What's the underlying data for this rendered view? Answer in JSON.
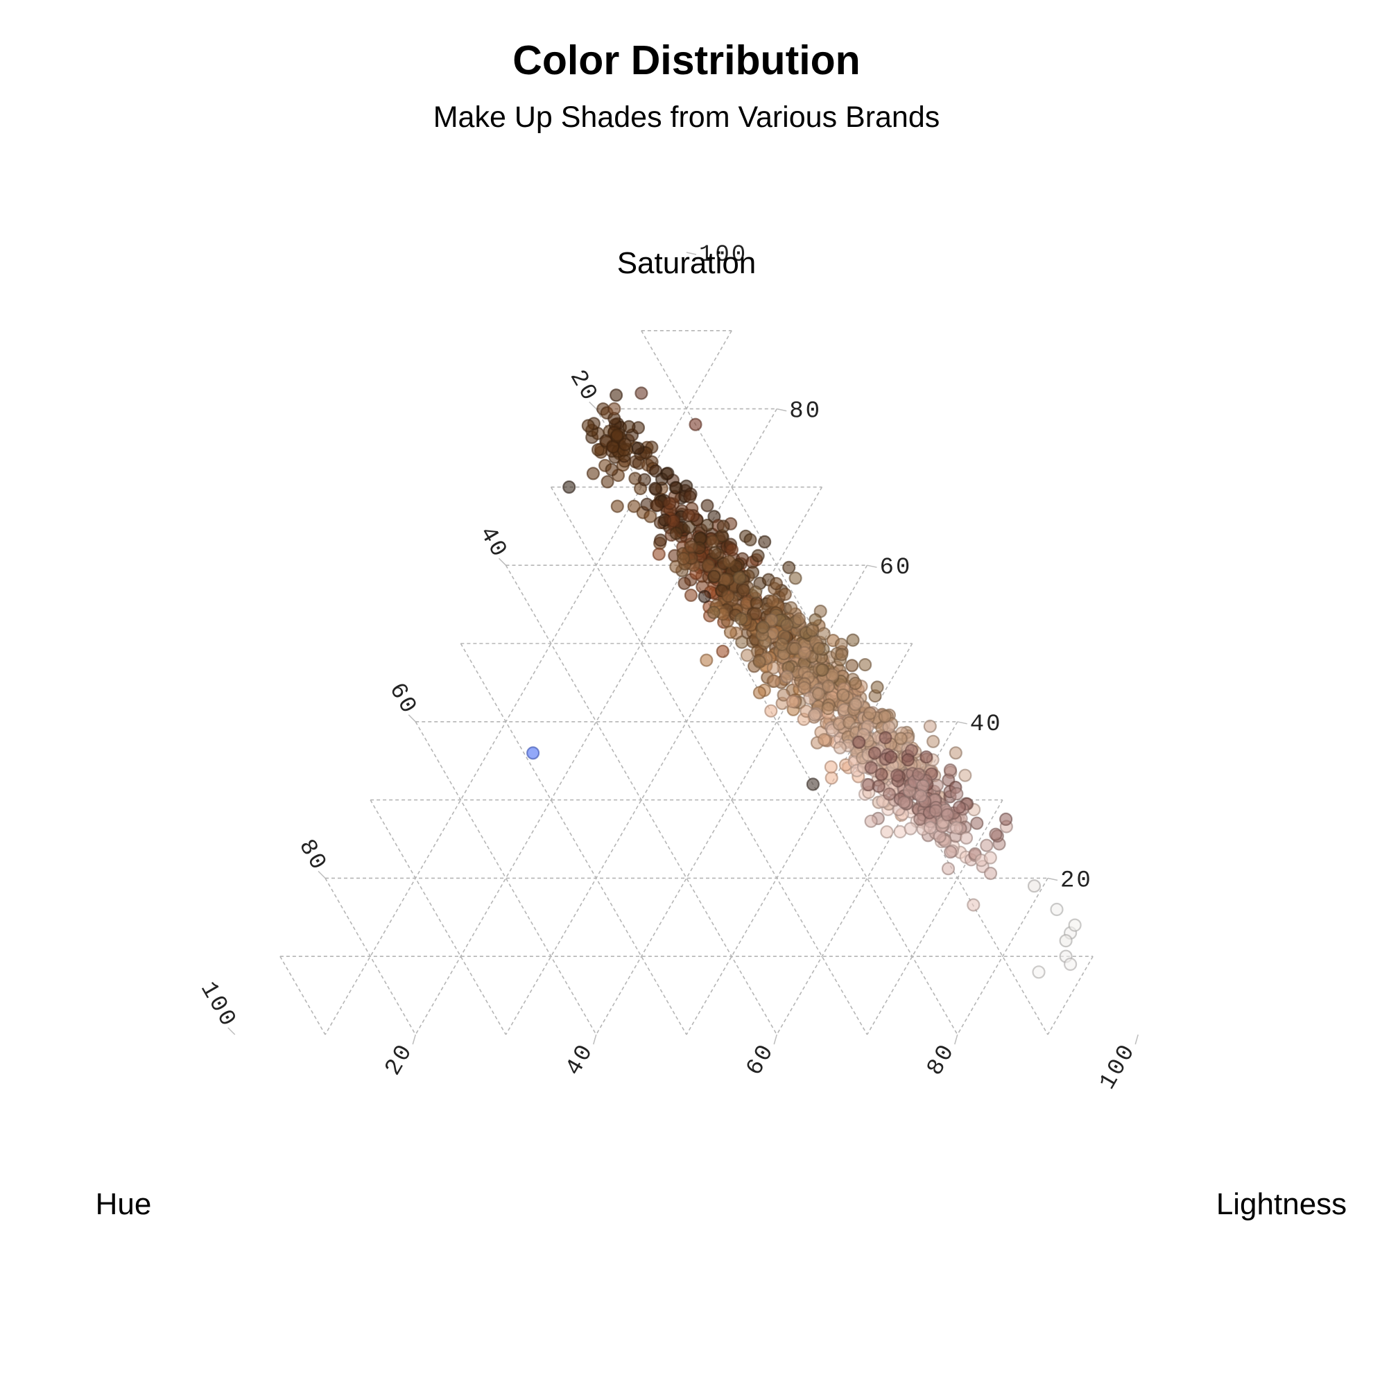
{
  "chart_data": {
    "type": "scatter",
    "subtype": "ternary",
    "title": "Color Distribution",
    "subtitle": "Make Up Shades from Various Brands",
    "axes": {
      "top": "Saturation",
      "left": "Hue",
      "right": "Lightness"
    },
    "ticks": [
      20,
      40,
      60,
      80,
      100
    ],
    "range": [
      0,
      100
    ],
    "grid": true,
    "grid_style": "dashed",
    "point_opacity": 0.6,
    "clusters": [
      {
        "saturation": 75,
        "hue": 20,
        "lightness": 5,
        "sd_along": 5,
        "sd_across": 2,
        "count": 90,
        "color_from": "#4a2a12",
        "color_to": "#7a4a22"
      },
      {
        "saturation": 62,
        "hue": 17,
        "lightness": 21,
        "sd_along": 6,
        "sd_across": 2.2,
        "count": 160,
        "color_from": "#3f2714",
        "color_to": "#a0502a"
      },
      {
        "saturation": 52,
        "hue": 15,
        "lightness": 33,
        "sd_along": 6,
        "sd_across": 2.6,
        "count": 220,
        "color_from": "#5a3a1e",
        "color_to": "#c08552"
      },
      {
        "saturation": 44,
        "hue": 12,
        "lightness": 44,
        "sd_along": 6,
        "sd_across": 2.8,
        "count": 240,
        "color_from": "#8a6a45",
        "color_to": "#f0b99a"
      },
      {
        "saturation": 35,
        "hue": 10,
        "lightness": 55,
        "sd_along": 5,
        "sd_across": 2.8,
        "count": 220,
        "color_from": "#b89070",
        "color_to": "#f2d2c8"
      },
      {
        "saturation": 29,
        "hue": 8,
        "lightness": 63,
        "sd_along": 4,
        "sd_across": 2.4,
        "count": 130,
        "color_from": "#8a5a55",
        "color_to": "#e8c8c0"
      }
    ],
    "points": [
      {
        "saturation": 36,
        "hue": 49,
        "lightness": 15,
        "color": "#4a6ef5"
      },
      {
        "saturation": 32,
        "hue": 20,
        "lightness": 48,
        "color": "#4a3a32"
      },
      {
        "saturation": 19,
        "hue": 2,
        "lightness": 79,
        "color": "#ece8e4"
      },
      {
        "saturation": 16,
        "hue": 1,
        "lightness": 83,
        "color": "#f2f0ee"
      },
      {
        "saturation": 13,
        "hue": 1,
        "lightness": 86,
        "color": "#f2f0ee"
      },
      {
        "saturation": 10,
        "hue": 3,
        "lightness": 87,
        "color": "#f0eeec"
      },
      {
        "saturation": 9,
        "hue": 3,
        "lightness": 88,
        "color": "#f4f2f0"
      },
      {
        "saturation": 8,
        "hue": 7,
        "lightness": 85,
        "color": "#f5f3f1"
      },
      {
        "saturation": 12,
        "hue": 2,
        "lightness": 86,
        "color": "#efece9"
      },
      {
        "saturation": 14,
        "hue": 0,
        "lightness": 86,
        "color": "#f3f1ef"
      },
      {
        "saturation": 56,
        "hue": 20,
        "lightness": 24,
        "color": "#3a2418"
      },
      {
        "saturation": 70,
        "hue": 28,
        "lightness": 2,
        "color": "#3a2a1c"
      },
      {
        "saturation": 82,
        "hue": 14,
        "lightness": 4,
        "color": "#6a3a2a"
      },
      {
        "saturation": 80,
        "hue": 18,
        "lightness": 2,
        "color": "#7a4a2a"
      },
      {
        "saturation": 78,
        "hue": 10,
        "lightness": 12,
        "color": "#7a3a2a"
      }
    ]
  }
}
